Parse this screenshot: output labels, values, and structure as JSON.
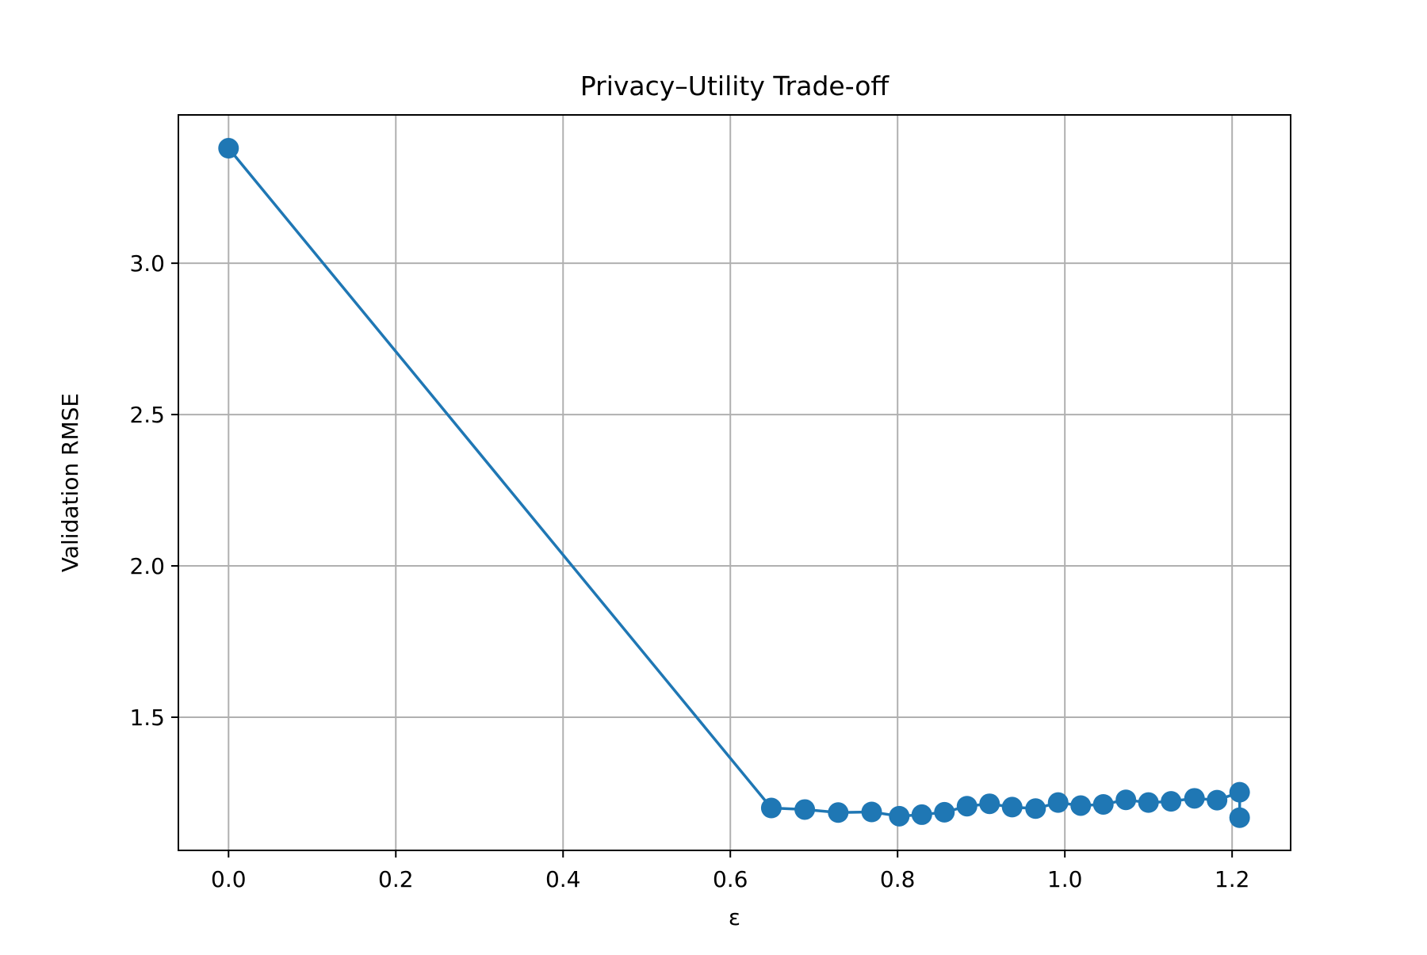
{
  "chart_data": {
    "type": "line",
    "title": "Privacy–Utility Trade-off",
    "xlabel": "ε",
    "ylabel": "Validation RMSE",
    "xlim": [
      -0.06,
      1.27
    ],
    "ylim": [
      1.06,
      3.49
    ],
    "x_ticks": [
      0.0,
      0.2,
      0.4,
      0.6,
      0.8,
      1.0,
      1.2
    ],
    "x_tick_labels": [
      "0.0",
      "0.2",
      "0.4",
      "0.6",
      "0.8",
      "1.0",
      "1.2"
    ],
    "y_ticks": [
      1.5,
      2.0,
      2.5,
      3.0
    ],
    "y_tick_labels": [
      "1.5",
      "2.0",
      "2.5",
      "3.0"
    ],
    "grid": true,
    "series": [
      {
        "color": "#1f77b4",
        "marker": "circle",
        "x": [
          0.0,
          0.649,
          0.689,
          0.729,
          0.769,
          0.802,
          0.829,
          0.856,
          0.883,
          0.91,
          0.937,
          0.965,
          0.992,
          1.019,
          1.046,
          1.073,
          1.1,
          1.127,
          1.155,
          1.182,
          1.209,
          1.209
        ],
        "y": [
          3.38,
          1.2,
          1.195,
          1.185,
          1.187,
          1.173,
          1.178,
          1.186,
          1.206,
          1.214,
          1.203,
          1.198,
          1.218,
          1.208,
          1.212,
          1.227,
          1.218,
          1.222,
          1.232,
          1.226,
          1.252,
          1.168
        ]
      }
    ]
  }
}
